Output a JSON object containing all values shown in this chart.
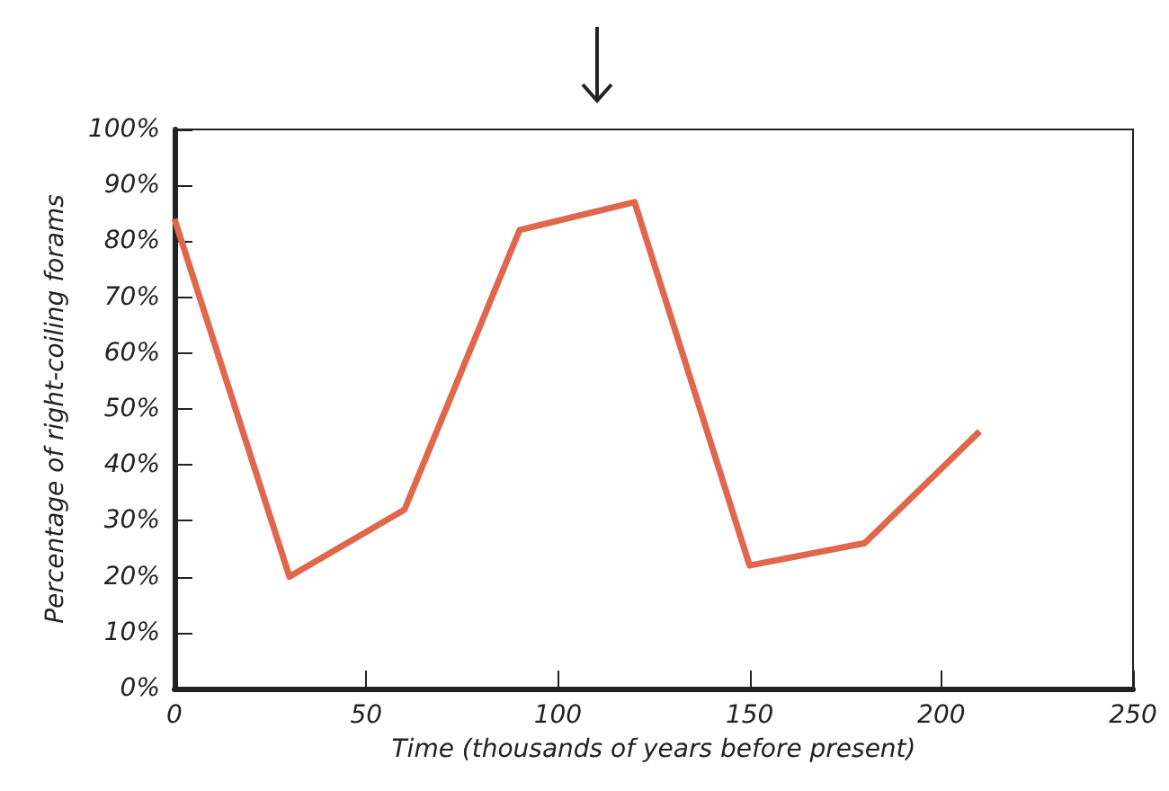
{
  "chart_data": {
    "type": "line",
    "xlabel": "Time (thousands of years before present)",
    "ylabel": "Percentage of right-coiling forams",
    "x": [
      0,
      30,
      60,
      90,
      120,
      150,
      180,
      210
    ],
    "series": [
      {
        "color": "#e0674b",
        "values": [
          84,
          20,
          32,
          82,
          87,
          22,
          26,
          46
        ]
      }
    ],
    "xlim": [
      0,
      250
    ],
    "xticks": [
      0,
      50,
      100,
      150,
      200,
      250
    ],
    "ylim": [
      0,
      100
    ],
    "yticks": [
      {
        "value": 0,
        "label": "0%"
      },
      {
        "value": 10,
        "label": "10%"
      },
      {
        "value": 20,
        "label": "20%"
      },
      {
        "value": 30,
        "label": "30%"
      },
      {
        "value": 40,
        "label": "40%"
      },
      {
        "value": 50,
        "label": "50%"
      },
      {
        "value": 60,
        "label": "60%"
      },
      {
        "value": 70,
        "label": "70%"
      },
      {
        "value": 80,
        "label": "80%"
      },
      {
        "value": 90,
        "label": "90%"
      },
      {
        "value": 100,
        "label": "100%"
      }
    ],
    "marker": "none",
    "line_style": "solid"
  }
}
